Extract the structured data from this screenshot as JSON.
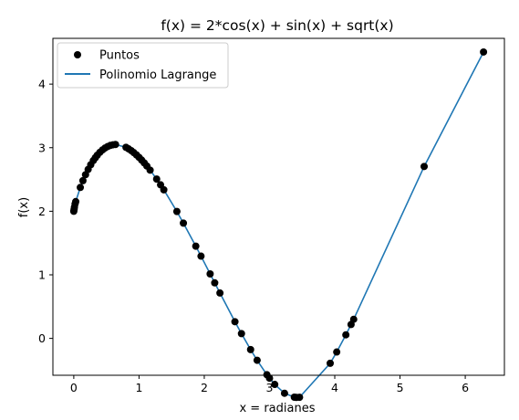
{
  "chart_data": {
    "type": "line",
    "title": "f(x) = 2*cos(x) + sin(x) + sqrt(x)",
    "xlabel": "x = radianes",
    "ylabel": "f(x)",
    "xlim": [
      -0.32,
      6.6
    ],
    "ylim": [
      -0.58,
      4.72
    ],
    "xticks": [
      0,
      1,
      2,
      3,
      4,
      5,
      6
    ],
    "yticks": [
      0,
      1,
      2,
      3,
      4
    ],
    "grid": false,
    "legend_position": "top-left",
    "series": [
      {
        "name": "Puntos",
        "kind": "scatter",
        "color": "#000000",
        "x": [
          0.0,
          0.005,
          0.01,
          0.02,
          0.03,
          0.1,
          0.14,
          0.18,
          0.22,
          0.26,
          0.3,
          0.33,
          0.36,
          0.4,
          0.44,
          0.48,
          0.52,
          0.56,
          0.6,
          0.64,
          0.8,
          0.84,
          0.88,
          0.92,
          0.96,
          1.0,
          1.04,
          1.08,
          1.12,
          1.17,
          1.27,
          1.33,
          1.38,
          1.58,
          1.68,
          1.87,
          1.95,
          2.09,
          2.16,
          2.24,
          2.47,
          2.57,
          2.71,
          2.81,
          2.96,
          3.0,
          3.08,
          3.23,
          3.38,
          3.41,
          3.46,
          3.93,
          4.03,
          4.17,
          4.25,
          4.29,
          5.37,
          6.28
        ],
        "y": [
          2.0,
          2.0299,
          2.0664,
          2.1162,
          2.1521,
          2.3749,
          2.4809,
          2.5748,
          2.6583,
          2.7325,
          2.7984,
          2.8422,
          2.8815,
          2.9271,
          2.9649,
          2.9951,
          3.0183,
          3.035,
          3.0456,
          3.0505,
          3.0054,
          2.9817,
          2.9538,
          2.9221,
          2.8867,
          2.8478,
          2.8056,
          2.7601,
          2.7116,
          2.6471,
          2.5063,
          2.4158,
          2.3377,
          1.9963,
          1.8134,
          1.4506,
          1.2935,
          1.0143,
          0.8739,
          0.7141,
          0.2629,
          0.0755,
          -0.1759,
          -0.344,
          -0.5716,
          -0.6261,
          -0.7243,
          -0.863,
          -0.9249,
          -0.9286,
          -0.9266,
          -0.3912,
          -0.2141,
          0.0563,
          0.2183,
          0.3003,
          2.7045,
          4.5051
        ]
      },
      {
        "name": "Polinomio Lagrange",
        "kind": "line",
        "color": "#1f77b4"
      }
    ]
  }
}
